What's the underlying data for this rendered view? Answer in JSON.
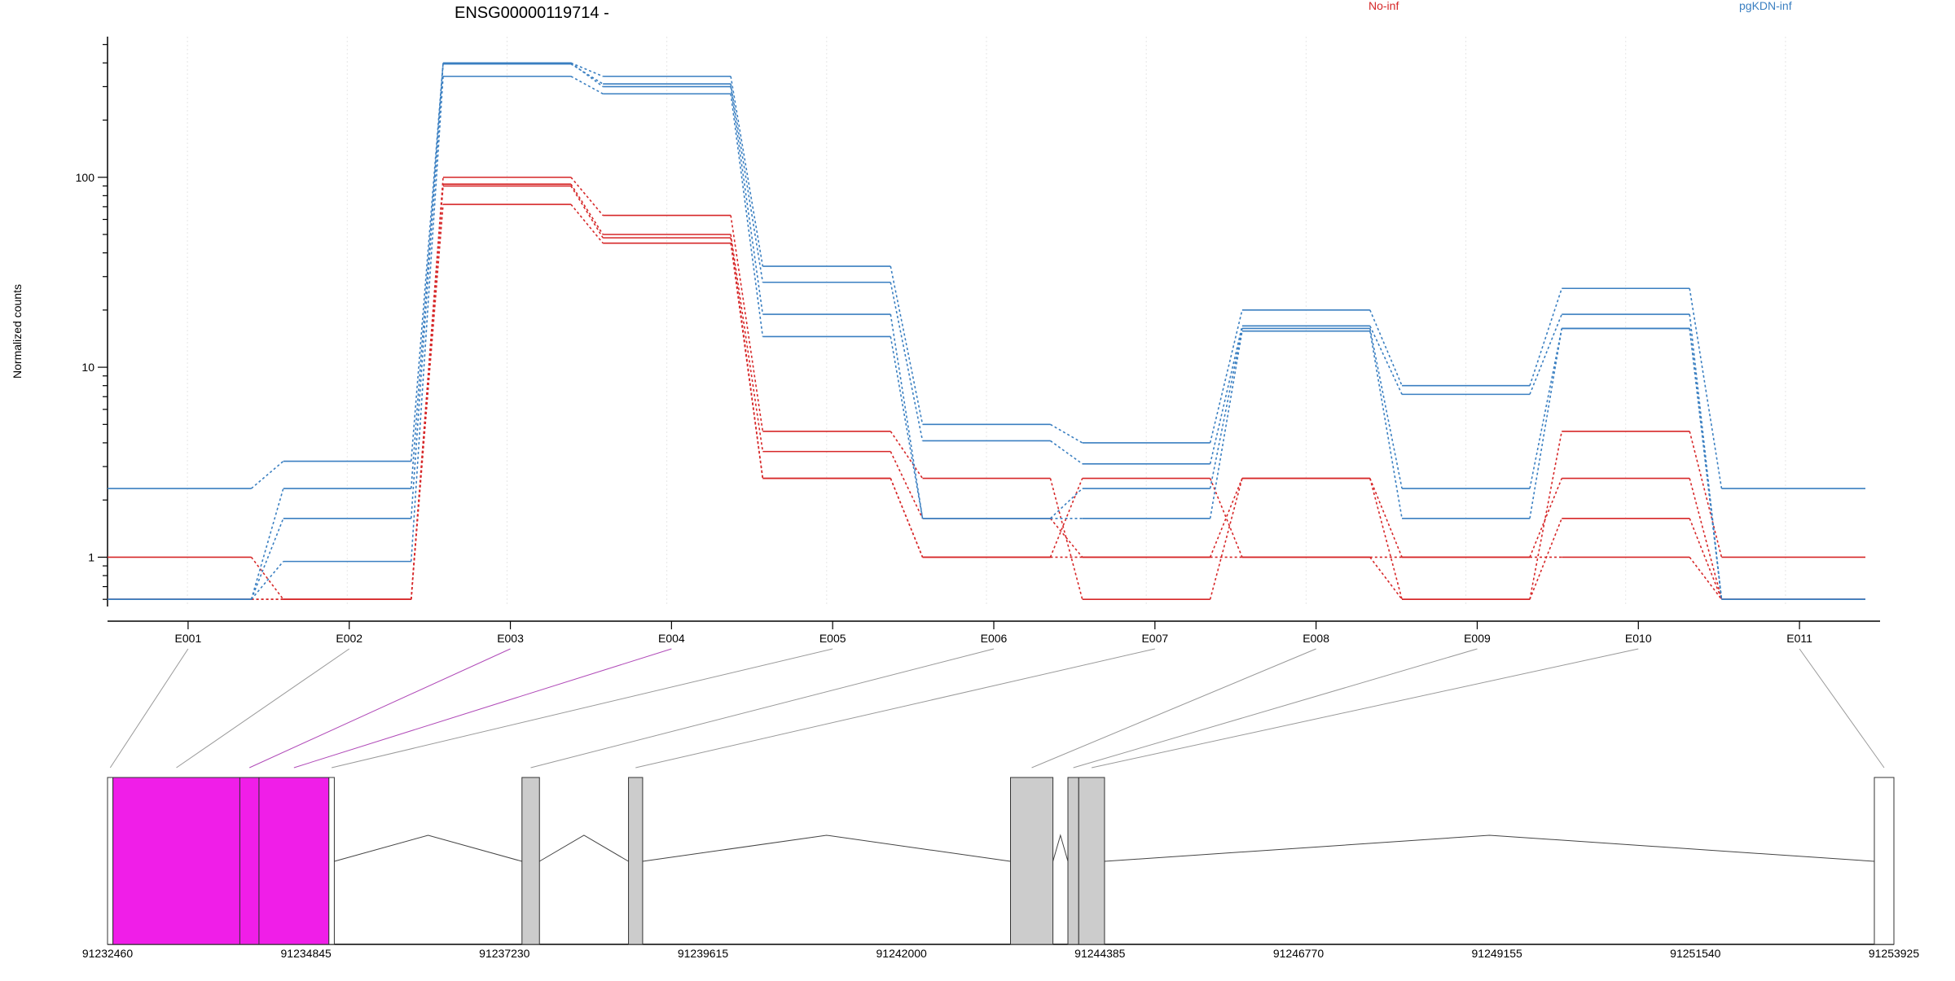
{
  "chart_data": {
    "type": "line",
    "title": "ENSG00000119714 -",
    "ylabel": "Normalized counts",
    "xlabel": "",
    "y_scale": "log",
    "ylim": [
      0.55,
      550
    ],
    "y_ticks": [
      {
        "value": 1,
        "label": "1"
      },
      {
        "value": 10,
        "label": "10"
      },
      {
        "value": 100,
        "label": "100"
      }
    ],
    "categories": [
      "E001",
      "E002",
      "E003",
      "E004",
      "E005",
      "E006",
      "E007",
      "E008",
      "E009",
      "E010",
      "E011"
    ],
    "legend_placement": "top",
    "grid": true,
    "groups": [
      {
        "name": "No-inf",
        "color": "#d62728"
      },
      {
        "name": "pgKDN-inf",
        "color": "#3a7fc1"
      }
    ],
    "series": [
      {
        "group": "No-inf",
        "values": [
          1,
          0.6,
          100,
          63,
          4.6,
          2.6,
          0.6,
          2.6,
          0.6,
          4.6,
          1
        ]
      },
      {
        "group": "No-inf",
        "values": [
          0.6,
          0.6,
          92,
          50,
          3.6,
          1.6,
          1,
          1,
          1,
          2.6,
          0.6
        ]
      },
      {
        "group": "No-inf",
        "values": [
          0.6,
          0.6,
          90,
          48,
          2.6,
          1,
          2.6,
          1,
          0.6,
          1.6,
          0.6
        ]
      },
      {
        "group": "No-inf",
        "values": [
          0.6,
          0.6,
          72,
          45,
          2.6,
          1,
          1,
          2.6,
          1,
          1,
          0.6
        ]
      },
      {
        "group": "pgKDN-inf",
        "values": [
          2.3,
          3.2,
          400,
          340,
          34,
          5,
          4,
          20,
          8,
          26,
          2.3
        ]
      },
      {
        "group": "pgKDN-inf",
        "values": [
          0.6,
          2.3,
          395,
          310,
          28,
          4.1,
          3.1,
          16.5,
          7.2,
          19,
          0.6
        ]
      },
      {
        "group": "pgKDN-inf",
        "values": [
          0.6,
          1.6,
          400,
          300,
          19,
          1.6,
          2.3,
          16,
          2.3,
          16,
          0.6
        ]
      },
      {
        "group": "pgKDN-inf",
        "values": [
          0.6,
          0.95,
          340,
          275,
          14.5,
          1.6,
          1.6,
          15.5,
          1.6,
          16,
          0.6
        ]
      }
    ],
    "gene_model": {
      "coord_range": [
        91232460,
        91253925
      ],
      "coord_ticks": [
        91232460,
        91234845,
        91237230,
        91239615,
        91242000,
        91244385,
        91246770,
        91249155,
        91251540,
        91253925
      ],
      "exons": [
        {
          "id": "E001",
          "start": 91232460,
          "end": 91232525,
          "kind": "utr"
        },
        {
          "id": "E002",
          "start": 91232525,
          "end": 91234050,
          "kind": "highlight"
        },
        {
          "id": "E003",
          "start": 91234050,
          "end": 91234280,
          "kind": "highlight"
        },
        {
          "id": "E004",
          "start": 91234280,
          "end": 91235120,
          "kind": "highlight"
        },
        {
          "id": "E005",
          "start": 91235120,
          "end": 91235185,
          "kind": "utr"
        },
        {
          "id": "E006",
          "start": 91237440,
          "end": 91237650,
          "kind": "coding"
        },
        {
          "id": "E007",
          "start": 91238720,
          "end": 91238890,
          "kind": "coding"
        },
        {
          "id": "E008",
          "start": 91243310,
          "end": 91243820,
          "kind": "coding"
        },
        {
          "id": "E009",
          "start": 91244000,
          "end": 91244130,
          "kind": "coding"
        },
        {
          "id": "E010",
          "start": 91244130,
          "end": 91244440,
          "kind": "coding"
        },
        {
          "id": "E011",
          "start": 91253690,
          "end": 91253925,
          "kind": "utr"
        }
      ],
      "highlighted_bins": [
        "E003",
        "E004"
      ],
      "colors": {
        "highlight": "#f01ee8",
        "coding": "#cccccc",
        "utr": "#ffffff",
        "link": "#999999",
        "link_highlight": "#b04ab8"
      }
    }
  }
}
